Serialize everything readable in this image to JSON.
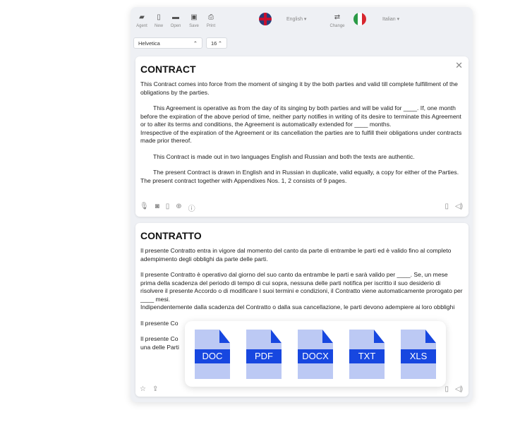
{
  "toolbar": {
    "items": [
      {
        "label": "Agent",
        "icon": "agent-icon",
        "glyph": "▰"
      },
      {
        "label": "New",
        "icon": "new-file-icon",
        "glyph": "▯"
      },
      {
        "label": "Open",
        "icon": "folder-icon",
        "glyph": "▬"
      },
      {
        "label": "Save",
        "icon": "save-icon",
        "glyph": "▣"
      },
      {
        "label": "Print",
        "icon": "print-icon",
        "glyph": "⎙"
      }
    ],
    "source_lang": "English ▾",
    "target_lang": "Italian ▾",
    "change_label": "Change",
    "change_glyph": "⇄"
  },
  "format": {
    "font": "Helvetica",
    "size": "16",
    "stepper": "⌃"
  },
  "source": {
    "title": "CONTRACT",
    "paragraphs": [
      "This Contract comes into force from the moment of singing it by the both parties and valid till complete fulfillment of the obligations by the parties.",
      "This Agreement is operative as from the day of its singing by both parties and will be valid for ____. If, one month before the expiration of the above period of time, neither party notifies in writing of its desire to terminate this Agreement or to alter its terms and conditions, the Agreement is automatically extended for ____ months.",
      "Irrespective of the expiration of the Agreement or its cancellation the parties are to fulfill their obligations under contracts made prior thereof.",
      "This Contract is made out in two languages English and Russian and both the texts are authentic.",
      "The present Contract is drawn in English and in Russian in duplicate, valid equally, a copy for either of the Parties. The present contract together with Appendixes Nos. 1, 2 consists of 9 pages."
    ]
  },
  "target": {
    "title": "CONTRATTO",
    "paragraphs": [
      "Il presente Contratto entra in vigore dal momento del canto da parte di entrambe le parti ed è valido fino al completo adempimento degli obblighi da parte delle parti.",
      "Il presente Contratto è operativo dal giorno del suo canto da entrambe le parti e sarà valido per ____. Se, un mese prima della scadenza del periodo di tempo di cui sopra, nessuna delle parti notifica per iscritto il suo desiderio di risolvere il presente Accordo o di modificare I suoi termini e condizioni, il Contratto viene automaticamente prorogato per ____ mesi.",
      "Indipendentemente dalla scadenza del Contratto o dalla sua cancellazione, le parti devono adempiere ai loro obblighi",
      "Il presente Co",
      "Il presente Co",
      "una delle Parti"
    ]
  },
  "export": {
    "formats": [
      "DOC",
      "PDF",
      "DOCX",
      "TXT",
      "XLS"
    ],
    "accent": "#1747e0"
  }
}
